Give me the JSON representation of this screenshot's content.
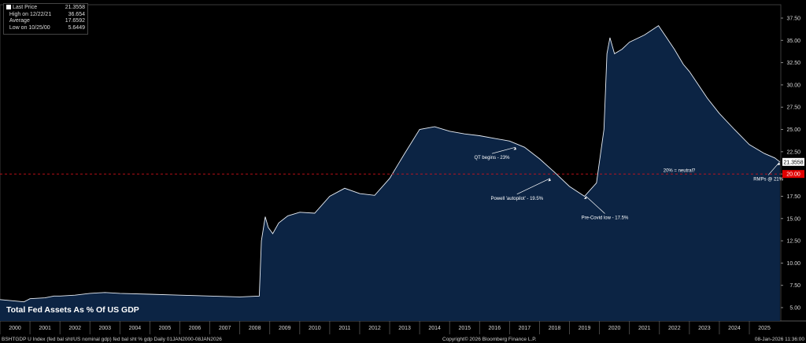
{
  "legend": {
    "last_label": "Last Price",
    "last_value": "21.3558",
    "high_label": "High on 12/22/21",
    "high_value": "36.654",
    "avg_label": "Average",
    "avg_value": "17.6592",
    "low_label": "Low on 10/25/00",
    "low_value": "5.6449"
  },
  "footer": {
    "left": "BSHTGDP U Index (fed bal sht/US nominal gdp) fed bal sht % gdp Daily 01JAN2000-08JAN2026",
    "center": "Copyright© 2026 Bloomberg Finance L.P.",
    "right": "08-Jan-2026 11:36:00"
  },
  "colors": {
    "area_fill": "#0c2444",
    "line": "#e8eef6",
    "reference_line": "#d0101a",
    "last_tag": "#ffffff",
    "ref_tag": "#e00000",
    "grid": "#3a3a3a"
  },
  "chart_data": {
    "type": "area",
    "title": "Total Fed Assets As % Of US GDP",
    "x_unit": "year",
    "x": [
      2000.0,
      2000.8,
      2001.0,
      2001.5,
      2001.8,
      2002.0,
      2002.5,
      2003.0,
      2003.5,
      2004.0,
      2005.0,
      2006.0,
      2007.0,
      2008.0,
      2008.65,
      2008.72,
      2008.85,
      2008.95,
      2009.1,
      2009.3,
      2009.6,
      2010.0,
      2010.5,
      2011.0,
      2011.5,
      2012.0,
      2012.5,
      2013.0,
      2013.5,
      2014.0,
      2014.5,
      2015.0,
      2015.5,
      2016.0,
      2016.5,
      2017.0,
      2017.5,
      2018.0,
      2018.5,
      2019.0,
      2019.5,
      2019.9,
      2020.15,
      2020.25,
      2020.35,
      2020.5,
      2020.75,
      2021.0,
      2021.5,
      2021.97,
      2022.2,
      2022.5,
      2022.8,
      2023.0,
      2023.3,
      2023.6,
      2024.0,
      2024.5,
      2025.0,
      2025.5,
      2025.85,
      2026.02
    ],
    "y": [
      5.9,
      5.65,
      6.0,
      6.1,
      6.3,
      6.3,
      6.4,
      6.6,
      6.7,
      6.6,
      6.5,
      6.4,
      6.3,
      6.2,
      6.3,
      12.5,
      15.2,
      14.0,
      13.3,
      14.5,
      15.3,
      15.7,
      15.6,
      17.5,
      18.4,
      17.8,
      17.6,
      19.5,
      22.3,
      25.0,
      25.3,
      24.8,
      24.5,
      24.3,
      24.0,
      23.7,
      23.0,
      21.7,
      20.2,
      18.6,
      17.5,
      19.0,
      25.0,
      33.5,
      35.3,
      33.5,
      34.0,
      34.8,
      35.6,
      36.654,
      35.5,
      34.0,
      32.3,
      31.5,
      30.0,
      28.5,
      26.8,
      25.0,
      23.3,
      22.3,
      21.8,
      21.3558
    ],
    "ylim": [
      3.5,
      39.0
    ],
    "y_ticks": [
      "5.00",
      "7.50",
      "10.00",
      "12.50",
      "15.00",
      "17.50",
      "20.00",
      "22.50",
      "25.00",
      "27.50",
      "30.00",
      "32.50",
      "35.00",
      "37.50"
    ],
    "x_ticks": [
      "2000",
      "2001",
      "2002",
      "2003",
      "2004",
      "2005",
      "2006",
      "2007",
      "2008",
      "2009",
      "2010",
      "2011",
      "2012",
      "2013",
      "2014",
      "2015",
      "2016",
      "2017",
      "2018",
      "2019",
      "2020",
      "2021",
      "2022",
      "2023",
      "2024",
      "2025"
    ],
    "reference_line": {
      "value": 20,
      "tag": "20.00",
      "label": "20% = neutral?"
    },
    "last_value": {
      "value": 21.3558,
      "tag": "21.3558"
    },
    "annotations": [
      {
        "text": "QT begins - 23%",
        "x": 2017.2,
        "y": 23.0
      },
      {
        "text": "Powell 'autopilot' - 19.5%",
        "x": 2018.35,
        "y": 19.5
      },
      {
        "text": "Pre-Covid low - 17.5%",
        "x": 2019.55,
        "y": 17.5
      },
      {
        "text": "RMPs @ 21%",
        "x": 2026.0,
        "y": 21.3
      }
    ]
  }
}
